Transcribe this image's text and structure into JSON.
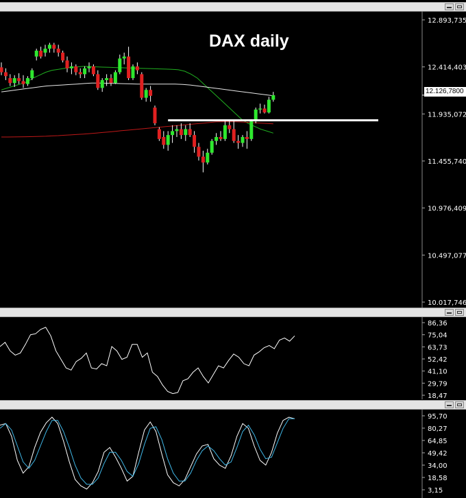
{
  "chart_data": [
    {
      "type": "candlestick",
      "title": "DAX daily",
      "y_ticks": [
        "12.893,7350",
        "12.414,4036",
        "11.935,0722",
        "11.455,7408",
        "10.976,4093",
        "10.497,0779",
        "10.017,7465"
      ],
      "y_values": [
        12893.735,
        12414.4036,
        11935.0722,
        11455.7408,
        10976.4093,
        10497.0779,
        10017.7465
      ],
      "ylim": [
        10017.7465,
        12893.735
      ],
      "current_price_label": "12.126,7800",
      "current_price": 12126.78,
      "support_line": 11870,
      "candles": [
        [
          12410,
          12460,
          12330,
          12360
        ],
        [
          12360,
          12400,
          12280,
          12320
        ],
        [
          12300,
          12340,
          12220,
          12250
        ],
        [
          12250,
          12330,
          12210,
          12300
        ],
        [
          12300,
          12350,
          12240,
          12270
        ],
        [
          12270,
          12330,
          12200,
          12240
        ],
        [
          12240,
          12320,
          12220,
          12300
        ],
        [
          12300,
          12400,
          12280,
          12380
        ],
        [
          12520,
          12600,
          12480,
          12580
        ],
        [
          12580,
          12620,
          12500,
          12520
        ],
        [
          12560,
          12640,
          12520,
          12600
        ],
        [
          12600,
          12660,
          12560,
          12640
        ],
        [
          12640,
          12660,
          12560,
          12600
        ],
        [
          12600,
          12640,
          12520,
          12560
        ],
        [
          12560,
          12580,
          12460,
          12480
        ],
        [
          12480,
          12520,
          12360,
          12400
        ],
        [
          12400,
          12460,
          12340,
          12420
        ],
        [
          12420,
          12440,
          12330,
          12360
        ],
        [
          12360,
          12400,
          12300,
          12340
        ],
        [
          12340,
          12420,
          12300,
          12400
        ],
        [
          12400,
          12460,
          12360,
          12420
        ],
        [
          12420,
          12440,
          12320,
          12340
        ],
        [
          12340,
          12380,
          12180,
          12200
        ],
        [
          12200,
          12300,
          12160,
          12280
        ],
        [
          12280,
          12340,
          12220,
          12300
        ],
        [
          12300,
          12340,
          12220,
          12250
        ],
        [
          12250,
          12380,
          12240,
          12360
        ],
        [
          12360,
          12540,
          12340,
          12500
        ],
        [
          12500,
          12560,
          12440,
          12520
        ],
        [
          12520,
          12620,
          12280,
          12300
        ],
        [
          12300,
          12440,
          12280,
          12420
        ],
        [
          12420,
          12460,
          12340,
          12380
        ],
        [
          12340,
          12360,
          12080,
          12100
        ],
        [
          12100,
          12200,
          12060,
          12180
        ],
        [
          12180,
          12220,
          12060,
          12120
        ],
        [
          12000,
          12020,
          11820,
          11840
        ],
        [
          11780,
          11800,
          11660,
          11680
        ],
        [
          11700,
          11760,
          11580,
          11620
        ],
        [
          11620,
          11760,
          11560,
          11720
        ],
        [
          11720,
          11820,
          11640,
          11760
        ],
        [
          11760,
          11820,
          11700,
          11780
        ],
        [
          11780,
          11840,
          11680,
          11720
        ],
        [
          11720,
          11820,
          11660,
          11780
        ],
        [
          11780,
          11840,
          11700,
          11720
        ],
        [
          11720,
          11760,
          11540,
          11600
        ],
        [
          11600,
          11640,
          11460,
          11500
        ],
        [
          11500,
          11560,
          11340,
          11440
        ],
        [
          11440,
          11580,
          11420,
          11540
        ],
        [
          11540,
          11680,
          11520,
          11660
        ],
        [
          11660,
          11740,
          11620,
          11700
        ],
        [
          11700,
          11760,
          11660,
          11680
        ],
        [
          11680,
          11860,
          11660,
          11820
        ],
        [
          11820,
          11860,
          11740,
          11780
        ],
        [
          11780,
          11860,
          11640,
          11660
        ],
        [
          11660,
          11720,
          11580,
          11640
        ],
        [
          11640,
          11720,
          11600,
          11700
        ],
        [
          11700,
          11760,
          11580,
          11680
        ],
        [
          11680,
          11880,
          11660,
          11860
        ],
        [
          11860,
          12000,
          11840,
          11980
        ],
        [
          11980,
          12040,
          11940,
          11990
        ],
        [
          11990,
          12030,
          11940,
          11950
        ],
        [
          11950,
          12110,
          11940,
          12080
        ],
        [
          12080,
          12160,
          12060,
          12126
        ]
      ],
      "ma_fast": [
        12180,
        12200,
        12220,
        12240,
        12260,
        12300,
        12330,
        12360,
        12380,
        12390,
        12400,
        12410,
        12415,
        12420,
        12418,
        12415,
        12412,
        12410,
        12408,
        12406,
        12404,
        12402,
        12400,
        12398,
        12396,
        12394,
        12392,
        12390,
        12385,
        12370,
        12340,
        12300,
        12240,
        12180,
        12120,
        12060,
        12000,
        11940,
        11880,
        11840,
        11810,
        11780,
        11760,
        11740
      ],
      "ma_fast_start": 0,
      "ma_slow": [
        12160,
        12170,
        12180,
        12190,
        12200,
        12210,
        12220,
        12225,
        12230,
        12235,
        12240,
        12245,
        12250,
        12250,
        12248,
        12246,
        12244,
        12242,
        12240,
        12240,
        12240,
        12240,
        12240,
        12240,
        12236,
        12230,
        12220,
        12210,
        12200,
        12190,
        12180,
        12170,
        12160,
        12150,
        12140,
        12130,
        12120
      ],
      "ma_long": [
        11700,
        11700,
        11701,
        11702,
        11703,
        11704,
        11706,
        11708,
        11711,
        11714,
        11718,
        11722,
        11726,
        11730,
        11735,
        11740,
        11746,
        11752,
        11758,
        11764,
        11770,
        11776,
        11782,
        11788,
        11794,
        11800,
        11806,
        11812,
        11818,
        11824,
        11830,
        11836,
        11842,
        11848,
        11854,
        11856,
        11856,
        11855,
        11853,
        11850,
        11846,
        11842,
        11838,
        11834
      ]
    },
    {
      "type": "line",
      "y_ticks": [
        "86,36",
        "75,04",
        "63,73",
        "52,42",
        "41,10",
        "29,79",
        "18,47"
      ],
      "ylim": [
        18.47,
        86.36
      ],
      "series": [
        {
          "values": [
            64,
            68,
            60,
            56,
            58,
            66,
            75,
            76,
            80,
            82,
            74,
            60,
            52,
            44,
            42,
            50,
            53,
            58,
            44,
            43,
            48,
            46,
            64,
            60,
            52,
            54,
            66,
            66,
            54,
            58,
            40,
            36,
            28,
            22,
            20,
            21,
            32,
            34,
            40,
            44,
            36,
            30,
            38,
            46,
            44,
            51,
            57,
            54,
            48,
            46,
            56,
            59,
            63,
            65,
            62,
            70,
            72,
            69,
            74
          ]
        }
      ]
    },
    {
      "type": "line",
      "y_ticks": [
        "95,70",
        "80,27",
        "64,85",
        "49,42",
        "34,00",
        "18,58",
        "3,15"
      ],
      "ylim": [
        3.15,
        95.7
      ],
      "series": [
        {
          "values": [
            84,
            86,
            70,
            40,
            24,
            32,
            56,
            75,
            87,
            94,
            86,
            64,
            38,
            16,
            8,
            4,
            12,
            26,
            50,
            56,
            44,
            30,
            14,
            20,
            50,
            78,
            88,
            76,
            48,
            22,
            12,
            8,
            16,
            32,
            48,
            58,
            60,
            42,
            34,
            30,
            46,
            70,
            86,
            80,
            58,
            40,
            34,
            50,
            74,
            90,
            94,
            92
          ]
        },
        {
          "values": [
            80,
            86,
            78,
            58,
            38,
            30,
            40,
            58,
            76,
            90,
            90,
            76,
            56,
            34,
            18,
            10,
            10,
            18,
            36,
            50,
            50,
            40,
            26,
            20,
            36,
            60,
            80,
            82,
            66,
            42,
            24,
            14,
            14,
            24,
            40,
            52,
            58,
            52,
            42,
            34,
            38,
            56,
            76,
            84,
            72,
            54,
            42,
            44,
            62,
            80,
            92,
            92
          ]
        }
      ]
    }
  ],
  "colors": {
    "bull": "#2ee82e",
    "bear": "#e02020",
    "wick": "#ffffff",
    "ma_fast": "#20b020",
    "ma_slow": "#e8e8e8",
    "ma_long": "#c01818",
    "support": "#ffffff",
    "line1": "#ffffff",
    "line2": "#40b8e8"
  }
}
